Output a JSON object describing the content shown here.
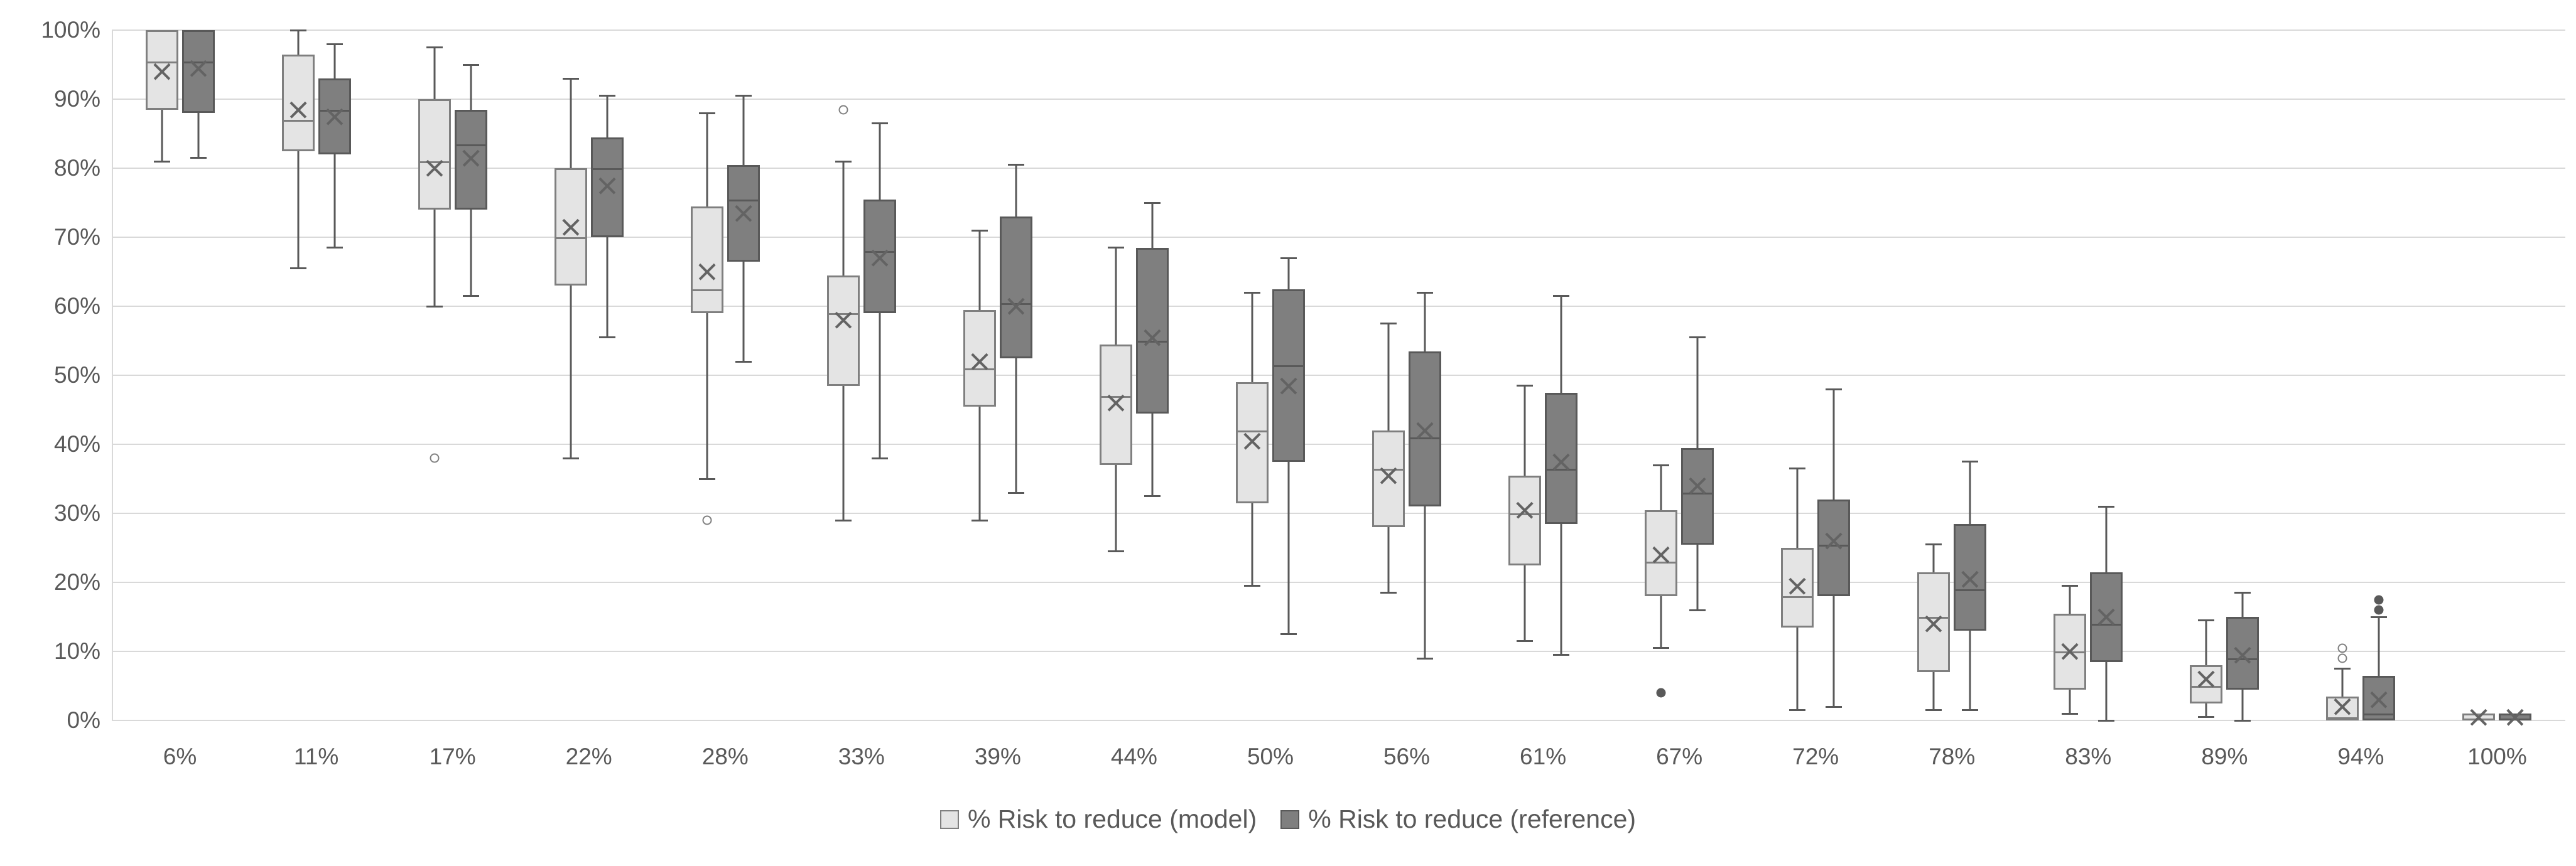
{
  "chart_data": {
    "type": "boxplot",
    "title": "",
    "xlabel": "",
    "ylabel": "",
    "ylim": [
      0,
      100
    ],
    "grid": "horizontal",
    "legend_position": "bottom-center",
    "y_ticks": [
      "0%",
      "10%",
      "20%",
      "30%",
      "40%",
      "50%",
      "60%",
      "70%",
      "80%",
      "90%",
      "100%"
    ],
    "categories": [
      "6%",
      "11%",
      "17%",
      "22%",
      "28%",
      "33%",
      "39%",
      "44%",
      "50%",
      "56%",
      "61%",
      "67%",
      "72%",
      "78%",
      "83%",
      "89%",
      "94%",
      "100%"
    ],
    "series": [
      {
        "name": "% Risk to reduce (model)",
        "fill": "#e4e4e4",
        "border": "#7f7f7f",
        "boxes": [
          {
            "lo": 81,
            "q1": 88.5,
            "med": 95.5,
            "mean": 94,
            "q3": 100,
            "hi": 100,
            "outliers": []
          },
          {
            "lo": 65.5,
            "q1": 82.5,
            "med": 87,
            "mean": 88.5,
            "q3": 96.5,
            "hi": 100,
            "outliers": []
          },
          {
            "lo": 60,
            "q1": 74,
            "med": 81,
            "mean": 80,
            "q3": 90,
            "hi": 97.5,
            "outliers": [
              {
                "v": 38,
                "style": "hollow"
              }
            ]
          },
          {
            "lo": 38,
            "q1": 63,
            "med": 70,
            "mean": 71.5,
            "q3": 80,
            "hi": 93,
            "outliers": []
          },
          {
            "lo": 35,
            "q1": 59,
            "med": 62.5,
            "mean": 65,
            "q3": 74.5,
            "hi": 88,
            "outliers": [
              {
                "v": 29,
                "style": "hollow"
              }
            ]
          },
          {
            "lo": 29,
            "q1": 48.5,
            "med": 59,
            "mean": 58,
            "q3": 64.5,
            "hi": 81,
            "outliers": [
              {
                "v": 88.5,
                "style": "hollow"
              }
            ]
          },
          {
            "lo": 29,
            "q1": 45.5,
            "med": 51,
            "mean": 52,
            "q3": 59.5,
            "hi": 71,
            "outliers": []
          },
          {
            "lo": 24.5,
            "q1": 37,
            "med": 47,
            "mean": 46,
            "q3": 54.5,
            "hi": 68.5,
            "outliers": []
          },
          {
            "lo": 19.5,
            "q1": 31.5,
            "med": 42,
            "mean": 40.5,
            "q3": 49,
            "hi": 62,
            "outliers": []
          },
          {
            "lo": 18.5,
            "q1": 28,
            "med": 36.5,
            "mean": 35.5,
            "q3": 42,
            "hi": 57.5,
            "outliers": []
          },
          {
            "lo": 11.5,
            "q1": 22.5,
            "med": 30,
            "mean": 30.5,
            "q3": 35.5,
            "hi": 48.5,
            "outliers": []
          },
          {
            "lo": 10.5,
            "q1": 18,
            "med": 23,
            "mean": 24,
            "q3": 30.5,
            "hi": 37,
            "outliers": [
              {
                "v": 4,
                "style": "filled"
              }
            ]
          },
          {
            "lo": 1.5,
            "q1": 13.5,
            "med": 18,
            "mean": 19.5,
            "q3": 25,
            "hi": 36.5,
            "outliers": []
          },
          {
            "lo": 1.5,
            "q1": 7,
            "med": 15,
            "mean": 14,
            "q3": 21.5,
            "hi": 25.5,
            "outliers": []
          },
          {
            "lo": 1,
            "q1": 4.5,
            "med": 10,
            "mean": 10,
            "q3": 15.5,
            "hi": 19.5,
            "outliers": []
          },
          {
            "lo": 0.5,
            "q1": 2.5,
            "med": 5,
            "mean": 6,
            "q3": 8,
            "hi": 14.5,
            "outliers": []
          },
          {
            "lo": 0,
            "q1": 0,
            "med": 0.5,
            "mean": 2,
            "q3": 3.5,
            "hi": 7.5,
            "outliers": [
              {
                "v": 9,
                "style": "hollow"
              },
              {
                "v": 10.5,
                "style": "hollow"
              }
            ]
          },
          {
            "lo": 0,
            "q1": 0,
            "med": 0,
            "mean": 0.5,
            "q3": 1,
            "hi": 1,
            "outliers": []
          }
        ]
      },
      {
        "name": "% Risk to reduce (reference)",
        "fill": "#7f7f7f",
        "border": "#595959",
        "boxes": [
          {
            "lo": 81.5,
            "q1": 88,
            "med": 95.5,
            "mean": 94.5,
            "q3": 100,
            "hi": 100,
            "outliers": []
          },
          {
            "lo": 68.5,
            "q1": 82,
            "med": 88.5,
            "mean": 87.5,
            "q3": 93,
            "hi": 98,
            "outliers": []
          },
          {
            "lo": 61.5,
            "q1": 74,
            "med": 83.5,
            "mean": 81.5,
            "q3": 88.5,
            "hi": 95,
            "outliers": []
          },
          {
            "lo": 55.5,
            "q1": 70,
            "med": 80,
            "mean": 77.5,
            "q3": 84.5,
            "hi": 90.5,
            "outliers": []
          },
          {
            "lo": 52,
            "q1": 66.5,
            "med": 75.5,
            "mean": 73.5,
            "q3": 80.5,
            "hi": 90.5,
            "outliers": []
          },
          {
            "lo": 38,
            "q1": 59,
            "med": 68,
            "mean": 67,
            "q3": 75.5,
            "hi": 86.5,
            "outliers": []
          },
          {
            "lo": 33,
            "q1": 52.5,
            "med": 60.5,
            "mean": 60,
            "q3": 73,
            "hi": 80.5,
            "outliers": []
          },
          {
            "lo": 32.5,
            "q1": 44.5,
            "med": 55,
            "mean": 55.5,
            "q3": 68.5,
            "hi": 75,
            "outliers": []
          },
          {
            "lo": 12.5,
            "q1": 37.5,
            "med": 51.5,
            "mean": 48.5,
            "q3": 62.5,
            "hi": 67,
            "outliers": []
          },
          {
            "lo": 9,
            "q1": 31,
            "med": 41,
            "mean": 42,
            "q3": 53.5,
            "hi": 62,
            "outliers": []
          },
          {
            "lo": 9.5,
            "q1": 28.5,
            "med": 36.5,
            "mean": 37.5,
            "q3": 47.5,
            "hi": 61.5,
            "outliers": []
          },
          {
            "lo": 16,
            "q1": 25.5,
            "med": 33,
            "mean": 34,
            "q3": 39.5,
            "hi": 55.5,
            "outliers": []
          },
          {
            "lo": 2,
            "q1": 18,
            "med": 25.5,
            "mean": 26,
            "q3": 32,
            "hi": 48,
            "outliers": []
          },
          {
            "lo": 1.5,
            "q1": 13,
            "med": 19,
            "mean": 20.5,
            "q3": 28.5,
            "hi": 37.5,
            "outliers": []
          },
          {
            "lo": 0,
            "q1": 8.5,
            "med": 14,
            "mean": 15,
            "q3": 21.5,
            "hi": 31,
            "outliers": []
          },
          {
            "lo": 0,
            "q1": 4.5,
            "med": 9,
            "mean": 9.5,
            "q3": 15,
            "hi": 18.5,
            "outliers": []
          },
          {
            "lo": 0,
            "q1": 0,
            "med": 1,
            "mean": 3,
            "q3": 6.5,
            "hi": 15,
            "outliers": [
              {
                "v": 16,
                "style": "filled"
              },
              {
                "v": 17.5,
                "style": "filled"
              }
            ]
          },
          {
            "lo": 0,
            "q1": 0,
            "med": 0,
            "mean": 0.5,
            "q3": 1,
            "hi": 1,
            "outliers": []
          }
        ]
      }
    ],
    "colors": {
      "grid": "#d9d9d9",
      "axis_text": "#595959",
      "whisker": "#595959",
      "mean_marker": "#636363",
      "model_fill": "#e4e4e4",
      "model_border": "#7f7f7f",
      "reference_fill": "#7f7f7f",
      "reference_border": "#595959"
    }
  }
}
